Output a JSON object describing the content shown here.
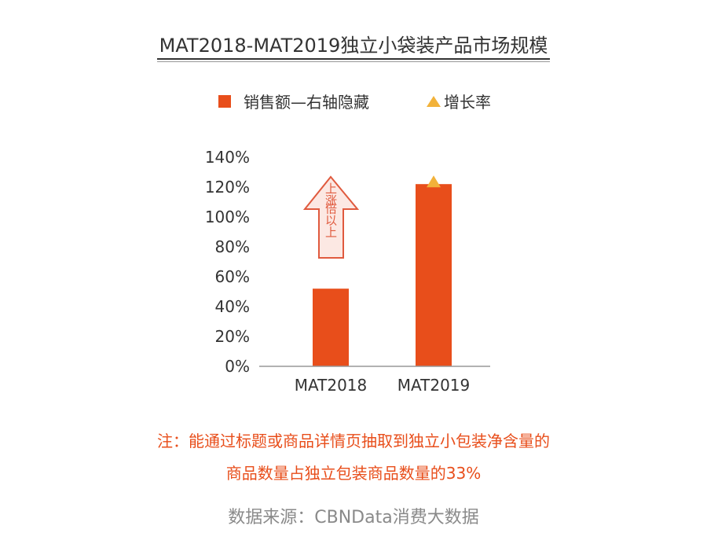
{
  "title": "MAT2018-MAT2019独立小袋装产品市场规模",
  "legend": {
    "bar_label": "销售额—右轴隐藏",
    "marker_label": "增长率"
  },
  "chart_data": {
    "type": "bar",
    "categories": [
      "MAT2018",
      "MAT2019"
    ],
    "series": [
      {
        "name": "增长率",
        "values": [
          52,
          122
        ]
      }
    ],
    "y_ticks": [
      "0%",
      "20%",
      "40%",
      "60%",
      "80%",
      "100%",
      "120%",
      "140%"
    ],
    "ylim": [
      0,
      140
    ],
    "marker_on": "MAT2019",
    "annotation": {
      "line1": "上涨",
      "line2": "倍以上"
    },
    "colors": {
      "bar": "#e84e1b",
      "marker": "#f2b23a",
      "arrow_fill": "#fce8e3",
      "arrow_stroke": "#e05a3e"
    }
  },
  "note": {
    "line1": "注：能通过标题或商品详情页抽取到独立小包装净含量的",
    "line2": "商品数量占独立包装商品数量的33%"
  },
  "source": "数据来源：CBNData消费大数据"
}
